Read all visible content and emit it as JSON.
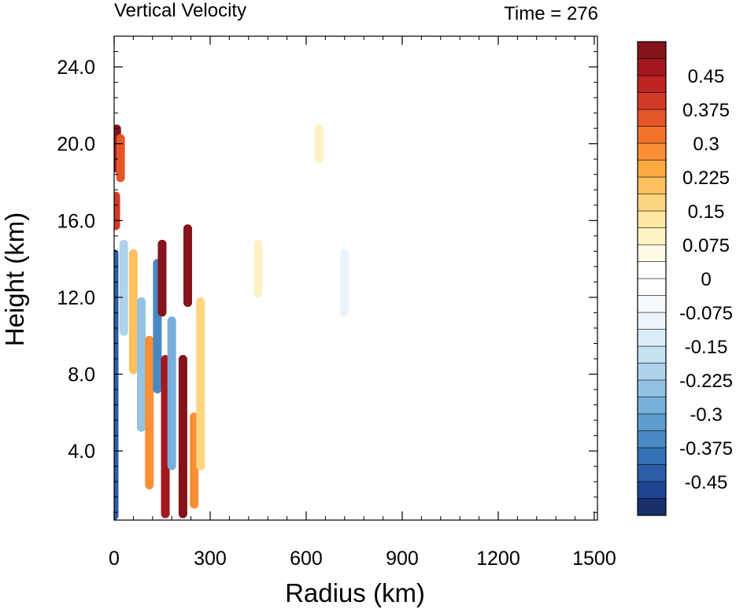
{
  "chart_data": {
    "type": "heatmap",
    "title": "Vertical Velocity",
    "time_label": "Time = 276",
    "xlabel": "Radius (km)",
    "ylabel": "Height (km)",
    "xlim": [
      0,
      1510
    ],
    "ylim": [
      0.4,
      25.6
    ],
    "x_ticks": [
      0,
      300,
      600,
      900,
      1200,
      1500
    ],
    "y_ticks": [
      4.0,
      8.0,
      12.0,
      16.0,
      20.0,
      24.0
    ],
    "x_tick_labels": [
      "0",
      "300",
      "600",
      "900",
      "1200",
      "1500"
    ],
    "y_tick_labels": [
      "4.0",
      "8.0",
      "12.0",
      "16.0",
      "20.0",
      "24.0"
    ],
    "colorbar": {
      "min": -0.525,
      "max": 0.525,
      "levels": 28,
      "labels": [
        "0.45",
        "0.375",
        "0.3",
        "0.225",
        "0.15",
        "0.075",
        "0",
        "-0.075",
        "-0.15",
        "-0.225",
        "-0.3",
        "-0.375",
        "-0.45"
      ],
      "label_values": [
        0.45,
        0.375,
        0.3,
        0.225,
        0.15,
        0.075,
        0,
        -0.075,
        -0.15,
        -0.225,
        -0.3,
        -0.375,
        -0.45
      ],
      "colors": [
        "#1a2f6b",
        "#1f4592",
        "#2a5ea8",
        "#3572b5",
        "#4888c3",
        "#5e9ccf",
        "#77b0da",
        "#93c3e3",
        "#aed3ea",
        "#c6e1f0",
        "#dbedf6",
        "#eaf4fa",
        "#f6fafd",
        "#ffffff",
        "#ffffff",
        "#fffbe6",
        "#fff3c6",
        "#ffe7a3",
        "#fed680",
        "#fdc160",
        "#fca944",
        "#fa8f35",
        "#f3732b",
        "#e45527",
        "#d13a26",
        "#bd2424",
        "#a3181e",
        "#85131b"
      ]
    },
    "features": [
      {
        "r": 0,
        "z0": 0.4,
        "z1": 14.5,
        "w": -0.45
      },
      {
        "r": 8,
        "z0": 18.5,
        "z1": 21.0,
        "w": 0.5
      },
      {
        "r": 20,
        "z0": 18.0,
        "z1": 20.5,
        "w": 0.35
      },
      {
        "r": 5,
        "z0": 15.5,
        "z1": 17.5,
        "w": 0.4
      },
      {
        "r": 30,
        "z0": 10.0,
        "z1": 15.0,
        "w": -0.2
      },
      {
        "r": 60,
        "z0": 8.0,
        "z1": 14.5,
        "w": 0.2
      },
      {
        "r": 85,
        "z0": 5.0,
        "z1": 12.0,
        "w": -0.25
      },
      {
        "r": 110,
        "z0": 2.0,
        "z1": 10.0,
        "w": 0.3
      },
      {
        "r": 135,
        "z0": 7.0,
        "z1": 14.0,
        "w": -0.35
      },
      {
        "r": 150,
        "z0": 11.0,
        "z1": 15.0,
        "w": 0.5
      },
      {
        "r": 160,
        "z0": 0.5,
        "z1": 9.0,
        "w": 0.45
      },
      {
        "r": 180,
        "z0": 3.0,
        "z1": 11.0,
        "w": -0.3
      },
      {
        "r": 215,
        "z0": 0.5,
        "z1": 9.0,
        "w": 0.5
      },
      {
        "r": 230,
        "z0": 11.5,
        "z1": 15.8,
        "w": 0.525
      },
      {
        "r": 250,
        "z0": 1.0,
        "z1": 6.0,
        "w": 0.3
      },
      {
        "r": 270,
        "z0": 3.0,
        "z1": 12.0,
        "w": 0.15
      },
      {
        "r": 450,
        "z0": 12.0,
        "z1": 15.0,
        "w": 0.1
      },
      {
        "r": 720,
        "z0": 11.0,
        "z1": 14.5,
        "w": -0.08
      },
      {
        "r": 640,
        "z0": 19.0,
        "z1": 21.0,
        "w": 0.08
      }
    ]
  }
}
